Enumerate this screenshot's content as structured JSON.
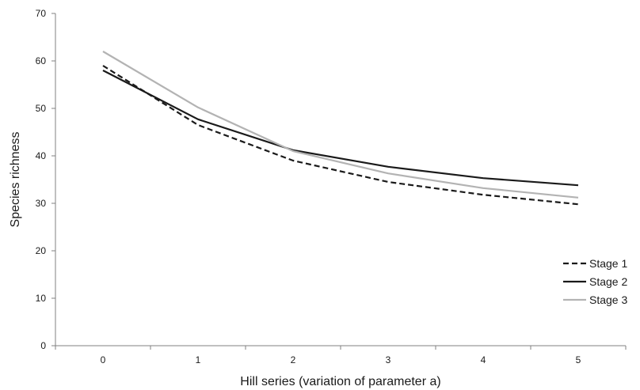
{
  "chart_data": {
    "type": "line",
    "title": "",
    "xlabel": "Hill series (variation of parameter a)",
    "ylabel": "Species  richness",
    "x": [
      0,
      1,
      2,
      3,
      4,
      5
    ],
    "xlim": [
      -0.5,
      5.5
    ],
    "ylim": [
      0,
      70
    ],
    "yticks": [
      0,
      10,
      20,
      30,
      40,
      50,
      60,
      70
    ],
    "grid": false,
    "legend": "right",
    "series": [
      {
        "name": "Stage 1",
        "values": [
          59,
          46.5,
          39,
          34.5,
          31.8,
          29.8
        ],
        "color": "#1a1a1a",
        "dash": "dashed"
      },
      {
        "name": "Stage 2",
        "values": [
          58,
          47.7,
          41.2,
          37.7,
          35.3,
          33.8
        ],
        "color": "#1a1a1a",
        "dash": "solid"
      },
      {
        "name": "Stage 3",
        "values": [
          62,
          50.2,
          41,
          36.3,
          33.2,
          31.2
        ],
        "color": "#b3b3b3",
        "dash": "solid"
      }
    ]
  }
}
